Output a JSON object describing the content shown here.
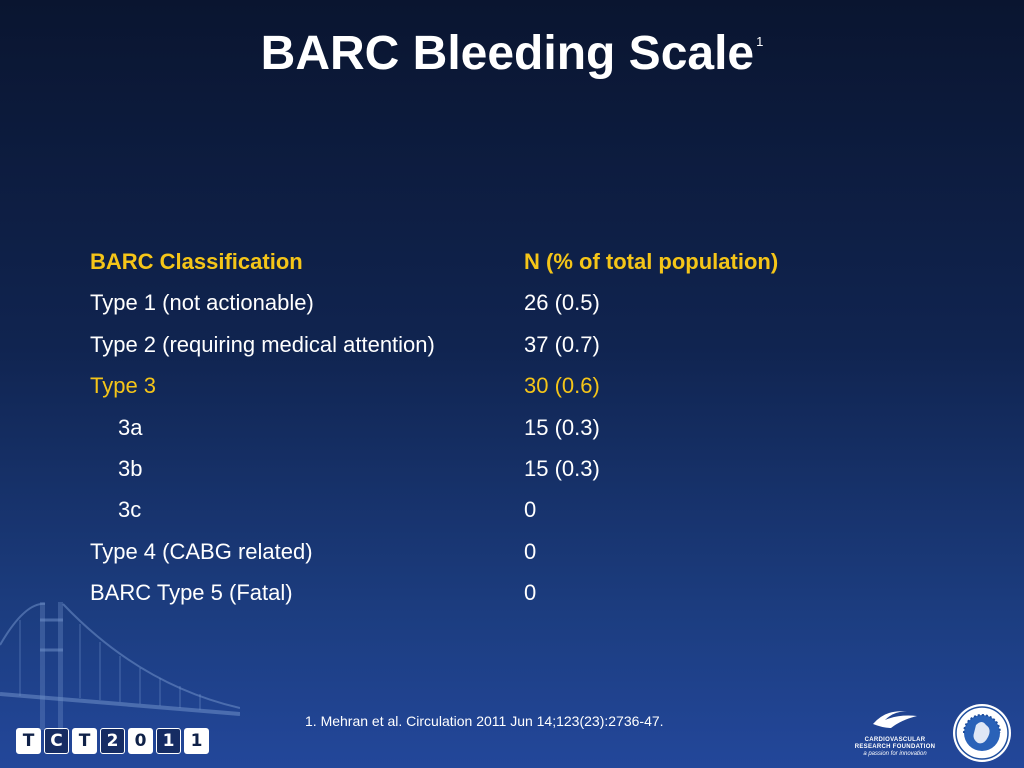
{
  "title": "BARC Bleeding Scale",
  "title_superscript": "1",
  "table": {
    "headers": [
      "BARC Classification",
      "N (% of total population)"
    ],
    "rows": [
      {
        "label": "Type 1 (not actionable)",
        "value": "26 (0.5)"
      },
      {
        "label": "Type 2 (requiring medical attention)",
        "value": "37 (0.7)"
      },
      {
        "label": "Type 3",
        "value": "30 (0.6)"
      },
      {
        "label": "3a",
        "value": "15 (0.3)"
      },
      {
        "label": "3b",
        "value": "15 (0.3)"
      },
      {
        "label": "3c",
        "value": "0"
      },
      {
        "label": "Type 4 (CABG related)",
        "value": "0"
      },
      {
        "label": "BARC Type 5 (Fatal)",
        "value": "0"
      }
    ]
  },
  "footnote": "1. Mehran et al. Circulation 2011 Jun 14;123(23):2736-47.",
  "logos": {
    "tct": [
      "T",
      "C",
      "T",
      "2",
      "0",
      "1",
      "1"
    ],
    "crf_line1": "CARDIOVASCULAR",
    "crf_line2": "RESEARCH FOUNDATION",
    "crf_tagline": "a passion for innovation"
  },
  "colors": {
    "background_top": "#0a1530",
    "background_bottom": "#23479a",
    "accent": "#f5c518",
    "text": "#ffffff"
  }
}
